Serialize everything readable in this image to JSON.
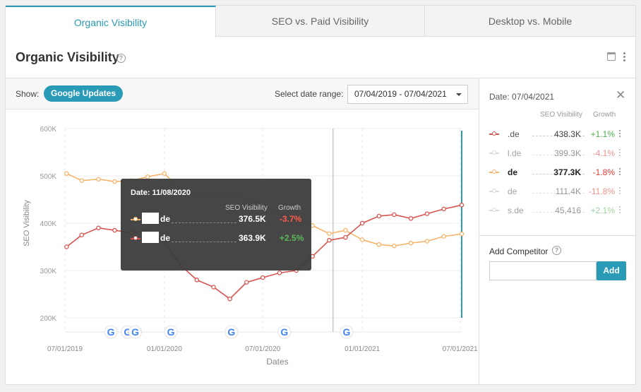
{
  "tabs": [
    {
      "label": "Organic Visibility",
      "active": true
    },
    {
      "label": "SEO vs. Paid Visibility",
      "active": false
    },
    {
      "label": "Desktop vs. Mobile",
      "active": false
    }
  ],
  "header": {
    "title": "Organic Visibility",
    "help_icon": "question-circle-icon"
  },
  "toolbar": {
    "show_label": "Show:",
    "google_updates_label": "Google Updates",
    "date_range_label": "Select date range:",
    "date_range_value": "07/04/2019 - 07/04/2021"
  },
  "colors": {
    "accent": "#2a9bb6",
    "red_series": "#d9534f",
    "orange_series": "#f5b46a",
    "positive": "#4cae4c",
    "negative": "#e03b2e"
  },
  "tooltip": {
    "date": "Date: 11/08/2020",
    "col_visibility": "SEO Visibility",
    "col_growth": "Growth",
    "rows": [
      {
        "name": "de",
        "value": "376.5K",
        "growth": "-3.7%",
        "positive": false
      },
      {
        "name": "de",
        "value": "363.9K",
        "growth": "+2.5%",
        "positive": true
      }
    ]
  },
  "sidebar": {
    "date": "Date: 07/04/2021",
    "col_visibility": "SEO Visibility",
    "col_growth": "Growth",
    "competitors": [
      {
        "name": ".de",
        "value": "438.3K",
        "growth": "+1.1%",
        "positive": true,
        "color": "#d9534f",
        "faded": false,
        "bold": false
      },
      {
        "name": "l.de",
        "value": "399.3K",
        "growth": "-4.1%",
        "positive": false,
        "color": "#bbbbbb",
        "faded": true,
        "bold": false
      },
      {
        "name": "de",
        "value": "377.3K",
        "growth": "-1.8%",
        "positive": false,
        "color": "#f5b46a",
        "faded": false,
        "bold": true
      },
      {
        "name": "de",
        "value": "111.4K",
        "growth": "-11.8%",
        "positive": false,
        "color": "#bbbbbb",
        "faded": true,
        "bold": false
      },
      {
        "name": "s.de",
        "value": "45,416",
        "growth": "+2.1%",
        "positive": true,
        "color": "#bbbbbb",
        "faded": true,
        "bold": false
      }
    ],
    "add_competitor_label": "Add Competitor",
    "add_input_placeholder": "",
    "add_button_label": "Add"
  },
  "chart_data": {
    "type": "line",
    "ylabel": "SEO Visibility",
    "xlabel": "Dates",
    "ylim": [
      200000,
      600000
    ],
    "y_ticks": [
      "600K",
      "500K",
      "400K",
      "300K",
      "200K"
    ],
    "x_ticks": [
      "07/01/2019",
      "01/01/2020",
      "07/01/2020",
      "01/01/2021",
      "07/01/2021"
    ],
    "grid": true,
    "google_update_dates": [
      "2019-09-24",
      "2019-10-25",
      "2019-11-08",
      "2020-01-13",
      "2020-05-04",
      "2020-08-10",
      "2020-12-03"
    ],
    "hover_date": "2020-11-08",
    "series": [
      {
        "color": "#f5b46a",
        "x": [
          "2019-07-04",
          "2019-08-01",
          "2019-09-01",
          "2019-10-01",
          "2019-11-01",
          "2019-12-01",
          "2020-01-01",
          "2020-02-01",
          "2020-03-01",
          "2020-04-01",
          "2020-05-01",
          "2020-06-01",
          "2020-07-01",
          "2020-08-01",
          "2020-09-01",
          "2020-10-01",
          "2020-11-01",
          "2020-12-01",
          "2021-01-01",
          "2021-02-01",
          "2021-03-01",
          "2021-04-01",
          "2021-05-01",
          "2021-06-01",
          "2021-07-04"
        ],
        "values": [
          505000,
          490000,
          493000,
          488000,
          490000,
          498000,
          505000,
          470000,
          455000,
          460000,
          462000,
          450000,
          440000,
          420000,
          405000,
          395000,
          378000,
          385000,
          365000,
          355000,
          352000,
          358000,
          362000,
          372000,
          377300
        ]
      },
      {
        "color": "#d9534f",
        "x": [
          "2019-07-04",
          "2019-08-01",
          "2019-09-01",
          "2019-10-01",
          "2019-11-01",
          "2019-12-01",
          "2020-01-01",
          "2020-02-01",
          "2020-03-01",
          "2020-04-01",
          "2020-05-01",
          "2020-06-01",
          "2020-07-01",
          "2020-08-01",
          "2020-09-01",
          "2020-10-01",
          "2020-11-01",
          "2020-12-01",
          "2021-01-01",
          "2021-02-01",
          "2021-03-01",
          "2021-04-01",
          "2021-05-01",
          "2021-06-01",
          "2021-07-04"
        ],
        "values": [
          350000,
          375000,
          390000,
          385000,
          380000,
          383000,
          360000,
          310000,
          280000,
          265000,
          240000,
          275000,
          285000,
          295000,
          300000,
          330000,
          363900,
          370000,
          400000,
          415000,
          418000,
          410000,
          420000,
          430000,
          438300
        ]
      }
    ]
  }
}
